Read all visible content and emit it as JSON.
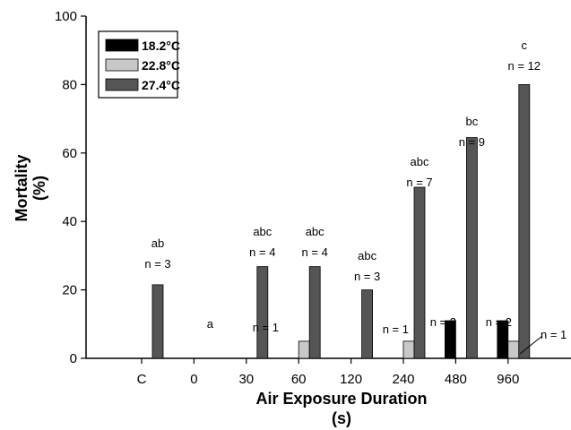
{
  "chart_data": {
    "type": "bar",
    "xlabel": [
      "Air Exposure Duration",
      "(s)"
    ],
    "ylabel": [
      "Mortality",
      "(%)"
    ],
    "ylim": [
      0,
      100
    ],
    "yticks": [
      "0",
      "20",
      "40",
      "60",
      "80",
      "100"
    ],
    "categories": [
      "C",
      "0",
      "30",
      "60",
      "120",
      "240",
      "480",
      "960"
    ],
    "series": [
      {
        "name": "18.2°C",
        "values": [
          0,
          0,
          0,
          0,
          0,
          0,
          11,
          11
        ],
        "color": "#000000"
      },
      {
        "name": "22.8°C",
        "values": [
          0,
          0,
          0,
          5,
          0,
          5,
          0,
          5
        ],
        "color": "#c8c8c8"
      },
      {
        "name": "27.4°C",
        "values": [
          21.5,
          0,
          26.8,
          26.8,
          20,
          50,
          64.5,
          80
        ],
        "color": "#555555"
      }
    ],
    "letter_labels": [
      "ab",
      "a",
      "abc",
      "abc",
      "abc",
      "abc",
      "bc",
      "c"
    ],
    "n_labels": [
      "n = 3",
      "",
      "n = 4",
      "n = 4",
      "n = 3",
      "n = 7",
      "n = 9",
      "n = 12"
    ],
    "small_n_labels": [
      {
        "category": "60",
        "text": "n = 1"
      },
      {
        "category": "240",
        "text": "n = 1"
      },
      {
        "category": "480",
        "text": "n = 2"
      },
      {
        "category": "960",
        "text": "n = 2"
      },
      {
        "category": "960",
        "text": "n = 1"
      }
    ],
    "legend": {
      "position": "top-left",
      "entries": [
        "18.2°C",
        "22.8°C",
        "27.4°C"
      ]
    },
    "grid": false
  }
}
